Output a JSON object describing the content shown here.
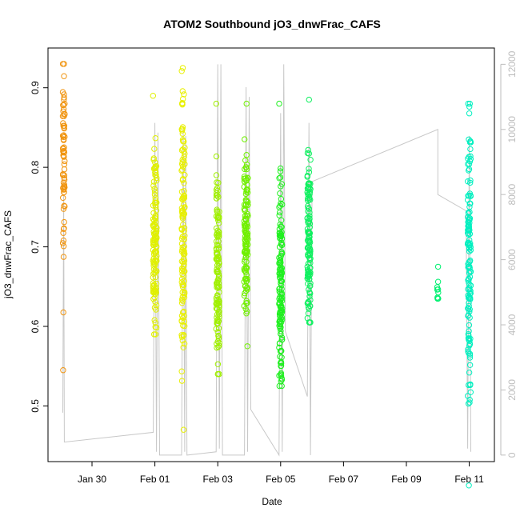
{
  "chart_data": {
    "type": "scatter",
    "title": "ATOM2 Southbound jO3_dnwFrac_CAFS",
    "xlabel": "Date",
    "ylabel": "jO3_dnwFrac_CAFS",
    "x_tick_labels": [
      "Jan 30",
      "Feb 01",
      "Feb 03",
      "Feb 05",
      "Feb 07",
      "Feb 09",
      "Feb 11"
    ],
    "x_tick_days": [
      30,
      32,
      34,
      36,
      38,
      40,
      42
    ],
    "xlim_days": [
      28.6,
      42.8
    ],
    "ylim": [
      0.43,
      0.95
    ],
    "y_ticks": [
      0.5,
      0.6,
      0.7,
      0.8,
      0.9
    ],
    "y_tick_labels": [
      "0.5",
      "0.6",
      "0.7",
      "0.8",
      "0.9"
    ],
    "right_axis": {
      "ticks": [
        0,
        2000,
        4000,
        6000,
        8000,
        10000,
        12000
      ],
      "tick_labels": [
        "0",
        "2000",
        "4000",
        "6000",
        "8000",
        "10000",
        "12000"
      ],
      "ylim": [
        -200,
        12500
      ],
      "color": "#bdbdbd"
    },
    "grid": false,
    "scatter_clusters": [
      {
        "day": 29.1,
        "spread": 0.03,
        "color": "#f0940f",
        "n": 70,
        "ymin": 0.545,
        "ymax": 0.93,
        "mean": 0.8
      },
      {
        "day": 32.0,
        "spread": 0.06,
        "color": "#e0f000",
        "n": 130,
        "ymin": 0.59,
        "ymax": 0.89,
        "mean": 0.71
      },
      {
        "day": 32.9,
        "spread": 0.05,
        "color": "#e8f000",
        "n": 130,
        "ymin": 0.47,
        "ymax": 0.925,
        "mean": 0.72
      },
      {
        "day": 34.0,
        "spread": 0.05,
        "color": "#a0f000",
        "n": 130,
        "ymin": 0.54,
        "ymax": 0.88,
        "mean": 0.67
      },
      {
        "day": 34.9,
        "spread": 0.06,
        "color": "#70f000",
        "n": 130,
        "ymin": 0.575,
        "ymax": 0.88,
        "mean": 0.7
      },
      {
        "day": 36.0,
        "spread": 0.05,
        "color": "#20f020",
        "n": 150,
        "ymin": 0.525,
        "ymax": 0.88,
        "mean": 0.65
      },
      {
        "day": 36.9,
        "spread": 0.05,
        "color": "#10f060",
        "n": 130,
        "ymin": 0.605,
        "ymax": 0.885,
        "mean": 0.71
      },
      {
        "day": 41.0,
        "spread": 0.02,
        "color": "#00f070",
        "n": 12,
        "ymin": 0.635,
        "ymax": 0.675,
        "mean": 0.645
      },
      {
        "day": 42.0,
        "spread": 0.05,
        "color": "#00f0c0",
        "n": 140,
        "ymin": 0.4,
        "ymax": 0.88,
        "mean": 0.68
      }
    ],
    "altitude_line": [
      [
        29.07,
        1300
      ],
      [
        29.1,
        8000
      ],
      [
        29.12,
        400
      ],
      [
        31.95,
        700
      ],
      [
        32.0,
        10200
      ],
      [
        32.05,
        100
      ],
      [
        32.1,
        9900
      ],
      [
        32.15,
        0
      ],
      [
        32.85,
        0
      ],
      [
        32.9,
        10000
      ],
      [
        32.95,
        100
      ],
      [
        32.98,
        9800
      ],
      [
        33.02,
        0
      ],
      [
        33.95,
        100
      ],
      [
        34.0,
        12000
      ],
      [
        34.05,
        200
      ],
      [
        34.1,
        12000
      ],
      [
        34.15,
        0
      ],
      [
        34.85,
        0
      ],
      [
        34.9,
        11300
      ],
      [
        34.95,
        100
      ],
      [
        35.0,
        11000
      ],
      [
        35.05,
        1400
      ],
      [
        35.95,
        0
      ],
      [
        36.0,
        10500
      ],
      [
        36.05,
        100
      ],
      [
        36.1,
        12000
      ],
      [
        36.15,
        3800
      ],
      [
        36.85,
        1800
      ],
      [
        36.9,
        10200
      ],
      [
        36.95,
        0
      ],
      [
        37.0,
        8400
      ],
      [
        41.0,
        10000
      ],
      [
        41.0,
        8000
      ],
      [
        41.9,
        7500
      ],
      [
        41.95,
        200
      ],
      [
        42.0,
        9800
      ],
      [
        42.05,
        100
      ]
    ]
  }
}
